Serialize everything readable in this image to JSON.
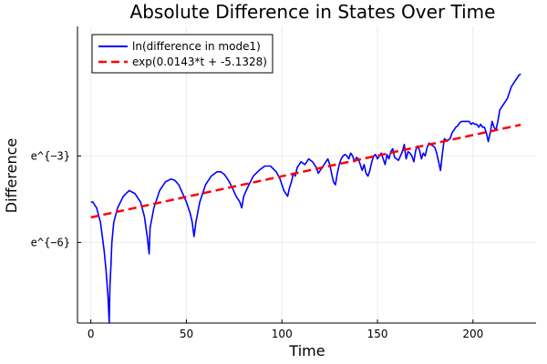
{
  "chart_data": {
    "type": "line",
    "title": "Absolute Difference in States Over Time",
    "xlabel": "Time",
    "ylabel": "Difference",
    "xlim": [
      -7,
      233
    ],
    "ylim": [
      -8.8,
      1.5
    ],
    "grid": true,
    "legend_position": "top-left",
    "x_ticks": [
      {
        "value": 0,
        "label": "0"
      },
      {
        "value": 50,
        "label": "50"
      },
      {
        "value": 100,
        "label": "100"
      },
      {
        "value": 150,
        "label": "150"
      },
      {
        "value": 200,
        "label": "200"
      }
    ],
    "y_ticks": [
      {
        "value": -3,
        "label": "e^{−3}"
      },
      {
        "value": -6,
        "label": "e^{−6}"
      }
    ],
    "series": [
      {
        "name": "ln(difference in mode1)",
        "color": "#0000ff",
        "style": "solid",
        "x": [
          0,
          1,
          3,
          5,
          7,
          8,
          9,
          9.6,
          10,
          10.5,
          11,
          12,
          14,
          17,
          20,
          23,
          26,
          28,
          29.5,
          30.5,
          31,
          33,
          36,
          39,
          42,
          44,
          46,
          48,
          50,
          52,
          53,
          54,
          55,
          57,
          60,
          63,
          66,
          68,
          70,
          72,
          74,
          76,
          78,
          79,
          80,
          82,
          85,
          88,
          91,
          94,
          97,
          99,
          100,
          101,
          102,
          103,
          104,
          105,
          106,
          107,
          108,
          110,
          112,
          114,
          116,
          118,
          119,
          120,
          122,
          124,
          125,
          126,
          127,
          128,
          129,
          130,
          131,
          132,
          133,
          134,
          135,
          136,
          137,
          138,
          139,
          140,
          141,
          142,
          143,
          144,
          145,
          146,
          147,
          148,
          149,
          150,
          151,
          152,
          153,
          154,
          155,
          156,
          157,
          158,
          159,
          160,
          161,
          162,
          163,
          164,
          165,
          166,
          167,
          168,
          169,
          170,
          171,
          172,
          173,
          174,
          175,
          176,
          177,
          178,
          179,
          180,
          181,
          182,
          183,
          184,
          185,
          186,
          187,
          188,
          189,
          190,
          191,
          192,
          193,
          194,
          195,
          196,
          197,
          198,
          199,
          200,
          201,
          202,
          203,
          204,
          205,
          206,
          207,
          208,
          209,
          210,
          211,
          212,
          213,
          214,
          215,
          216,
          217,
          218,
          219,
          220,
          221,
          222,
          223,
          224,
          225
        ],
        "y": [
          -4.6,
          -4.6,
          -4.8,
          -5.3,
          -6.3,
          -7.0,
          -7.9,
          -8.8,
          -7.5,
          -6.8,
          -6.0,
          -5.3,
          -4.8,
          -4.4,
          -4.2,
          -4.3,
          -4.6,
          -5.1,
          -5.8,
          -6.4,
          -5.5,
          -4.8,
          -4.2,
          -3.9,
          -3.8,
          -3.85,
          -4.0,
          -4.3,
          -4.6,
          -5.0,
          -5.3,
          -5.8,
          -5.3,
          -4.6,
          -4.0,
          -3.7,
          -3.55,
          -3.55,
          -3.65,
          -3.85,
          -4.1,
          -4.4,
          -4.6,
          -4.8,
          -4.4,
          -4.1,
          -3.7,
          -3.5,
          -3.35,
          -3.35,
          -3.55,
          -3.8,
          -4.0,
          -4.2,
          -4.3,
          -4.4,
          -4.1,
          -3.9,
          -3.6,
          -3.7,
          -3.4,
          -3.2,
          -3.3,
          -3.1,
          -3.2,
          -3.4,
          -3.6,
          -3.5,
          -3.3,
          -3.1,
          -3.3,
          -3.6,
          -3.9,
          -4.0,
          -3.6,
          -3.3,
          -3.1,
          -3.0,
          -2.95,
          -3.0,
          -3.1,
          -2.9,
          -3.0,
          -3.2,
          -3.05,
          -3.1,
          -3.3,
          -3.5,
          -3.3,
          -3.6,
          -3.7,
          -3.5,
          -3.2,
          -3.0,
          -2.95,
          -3.1,
          -3.0,
          -2.9,
          -3.1,
          -3.3,
          -2.95,
          -3.1,
          -2.85,
          -2.75,
          -3.05,
          -3.1,
          -3.15,
          -3.0,
          -2.85,
          -2.6,
          -3.1,
          -2.85,
          -2.9,
          -3.0,
          -3.2,
          -2.8,
          -2.65,
          -2.8,
          -3.1,
          -2.9,
          -3.0,
          -2.7,
          -2.55,
          -2.6,
          -2.65,
          -2.7,
          -2.9,
          -3.2,
          -3.5,
          -2.9,
          -2.4,
          -2.45,
          -2.45,
          -2.4,
          -2.2,
          -2.1,
          -2.0,
          -1.95,
          -1.85,
          -1.8,
          -1.8,
          -1.8,
          -1.8,
          -1.8,
          -1.9,
          -1.85,
          -1.9,
          -1.9,
          -2.0,
          -1.9,
          -2.0,
          -2.0,
          -2.2,
          -2.5,
          -2.2,
          -1.8,
          -2.0,
          -2.1,
          -1.8,
          -1.4,
          -1.3,
          -1.2,
          -1.1,
          -1.0,
          -0.8,
          -0.6,
          -0.5,
          -0.4,
          -0.3,
          -0.2,
          -0.15
        ]
      },
      {
        "name": "exp(0.0143*t + -5.1328)",
        "color": "#ff0000",
        "style": "dashed",
        "x": [
          0,
          225
        ],
        "y": [
          -5.1328,
          -1.9153
        ]
      }
    ]
  }
}
